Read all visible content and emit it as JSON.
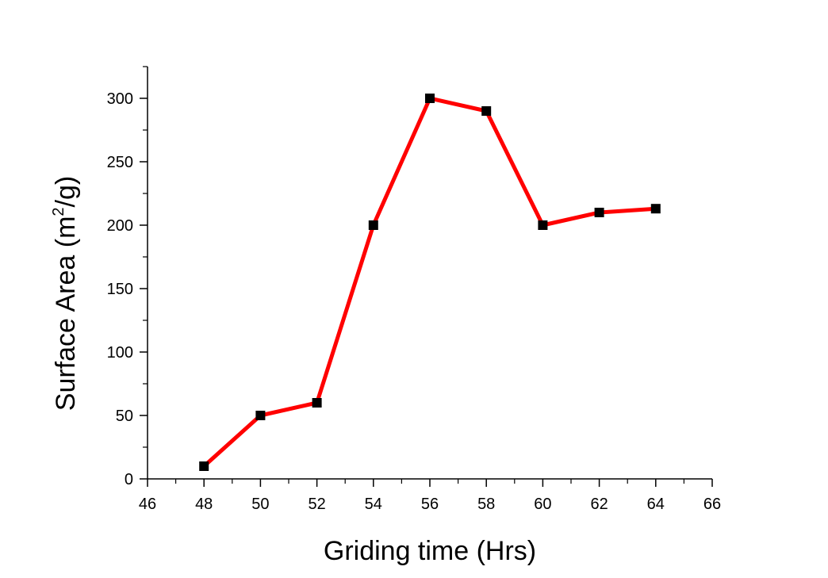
{
  "chart_data": {
    "type": "line",
    "title": "",
    "xlabel": "Griding time (Hrs)",
    "ylabel_main": "Surface Area (m",
    "ylabel_sup": "2",
    "ylabel_tail": "/g)",
    "xlim": [
      46,
      66
    ],
    "ylim": [
      0,
      325
    ],
    "xticks": [
      46,
      48,
      50,
      52,
      54,
      56,
      58,
      60,
      62,
      64,
      66
    ],
    "xtick_labels": [
      "46",
      "48",
      "50",
      "52",
      "54",
      "56",
      "58",
      "60",
      "62",
      "64",
      "66"
    ],
    "yticks": [
      0,
      50,
      100,
      150,
      200,
      250,
      300
    ],
    "ytick_labels": [
      "0",
      "50",
      "100",
      "150",
      "200",
      "250",
      "300"
    ],
    "grid": false,
    "legend": "none",
    "series": [
      {
        "line_color": "#ff0000",
        "marker_color": "#000000",
        "marker": "square",
        "x": [
          48,
          50,
          52,
          54,
          56,
          58,
          60,
          62,
          64
        ],
        "y": [
          10,
          50,
          60,
          200,
          300,
          290,
          200,
          210,
          213
        ]
      }
    ]
  }
}
